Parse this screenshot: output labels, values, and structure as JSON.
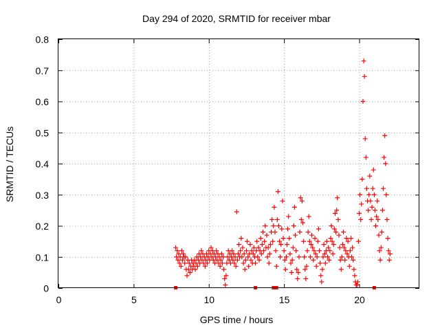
{
  "chart_data": {
    "type": "scatter",
    "title": "Day 294 of 2020, SRMTID for receiver mbar",
    "xlabel": "GPS time / hours",
    "ylabel": "SRMTID / TECUs",
    "xlim": [
      0,
      24
    ],
    "ylim": [
      0,
      0.8
    ],
    "x_ticks": [
      "0",
      "5",
      "10",
      "15",
      "20"
    ],
    "y_ticks": [
      "0",
      "0.1",
      "0.2",
      "0.3",
      "0.4",
      "0.5",
      "0.6",
      "0.7",
      "0.8"
    ],
    "grid": true,
    "legend": "none",
    "marker": "+",
    "color": "#ff0000",
    "series": [
      {
        "points": [
          [
            7.8,
            0.13
          ],
          [
            7.85,
            0.1
          ],
          [
            7.9,
            0.12
          ],
          [
            7.95,
            0.09
          ],
          [
            8.0,
            0.11
          ],
          [
            8.05,
            0.08
          ],
          [
            8.1,
            0.1
          ],
          [
            8.15,
            0.07
          ],
          [
            8.2,
            0.12
          ],
          [
            8.25,
            0.09
          ],
          [
            8.3,
            0.11
          ],
          [
            8.35,
            0.1
          ],
          [
            8.4,
            0.08
          ],
          [
            8.45,
            0.1
          ],
          [
            8.5,
            0.06
          ],
          [
            8.55,
            0.04
          ],
          [
            8.6,
            0.09
          ],
          [
            8.65,
            0.06
          ],
          [
            8.7,
            0.08
          ],
          [
            8.75,
            0.05
          ],
          [
            8.8,
            0.07
          ],
          [
            8.85,
            0.09
          ],
          [
            8.9,
            0.06
          ],
          [
            8.95,
            0.08
          ],
          [
            9.0,
            0.07
          ],
          [
            9.05,
            0.09
          ],
          [
            9.1,
            0.06
          ],
          [
            9.15,
            0.08
          ],
          [
            9.2,
            0.1
          ],
          [
            9.25,
            0.07
          ],
          [
            9.3,
            0.09
          ],
          [
            9.35,
            0.11
          ],
          [
            9.4,
            0.08
          ],
          [
            9.45,
            0.1
          ],
          [
            9.5,
            0.12
          ],
          [
            9.55,
            0.09
          ],
          [
            9.6,
            0.11
          ],
          [
            9.65,
            0.08
          ],
          [
            9.7,
            0.1
          ],
          [
            9.75,
            0.07
          ],
          [
            9.8,
            0.09
          ],
          [
            9.85,
            0.11
          ],
          [
            9.9,
            0.08
          ],
          [
            9.95,
            0.1
          ],
          [
            10.0,
            0.12
          ],
          [
            10.05,
            0.09
          ],
          [
            10.1,
            0.11
          ],
          [
            10.15,
            0.13
          ],
          [
            10.2,
            0.1
          ],
          [
            10.25,
            0.12
          ],
          [
            10.3,
            0.09
          ],
          [
            10.35,
            0.11
          ],
          [
            10.4,
            0.08
          ],
          [
            10.45,
            0.1
          ],
          [
            10.5,
            0.12
          ],
          [
            10.55,
            0.09
          ],
          [
            10.6,
            0.11
          ],
          [
            10.65,
            0.08
          ],
          [
            10.7,
            0.1
          ],
          [
            10.75,
            0.07
          ],
          [
            10.8,
            0.09
          ],
          [
            10.85,
            0.11
          ],
          [
            10.9,
            0.08
          ],
          [
            10.95,
            0.1
          ],
          [
            11.0,
            0.06
          ],
          [
            11.05,
            0.03
          ],
          [
            11.1,
            0.01
          ],
          [
            11.15,
            0.04
          ],
          [
            11.2,
            0.08
          ],
          [
            11.25,
            0.1
          ],
          [
            11.3,
            0.12
          ],
          [
            11.35,
            0.09
          ],
          [
            11.4,
            0.11
          ],
          [
            11.45,
            0.08
          ],
          [
            11.5,
            0.1
          ],
          [
            11.55,
            0.12
          ],
          [
            11.6,
            0.09
          ],
          [
            11.65,
            0.11
          ],
          [
            11.7,
            0.08
          ],
          [
            11.75,
            0.1
          ],
          [
            11.8,
            0.07
          ],
          [
            11.85,
            0.245
          ],
          [
            11.9,
            0.09
          ],
          [
            11.95,
            0.11
          ],
          [
            12.0,
            0.14
          ],
          [
            12.05,
            0.1
          ],
          [
            12.1,
            0.12
          ],
          [
            12.15,
            0.16
          ],
          [
            12.2,
            0.1
          ],
          [
            12.25,
            0.13
          ],
          [
            12.3,
            0.08
          ],
          [
            12.35,
            0.11
          ],
          [
            12.4,
            0.06
          ],
          [
            12.45,
            0.09
          ],
          [
            12.5,
            0.12
          ],
          [
            12.55,
            0.15
          ],
          [
            12.6,
            0.1
          ],
          [
            12.65,
            0.07
          ],
          [
            12.7,
            0.11
          ],
          [
            12.75,
            0.14
          ],
          [
            12.8,
            0.09
          ],
          [
            12.85,
            0.12
          ],
          [
            12.9,
            0.08
          ],
          [
            12.95,
            0.11
          ],
          [
            13.0,
            0.13
          ],
          [
            13.05,
            0.1
          ],
          [
            13.1,
            0.08
          ],
          [
            13.15,
            0.12
          ],
          [
            13.2,
            0.15
          ],
          [
            13.25,
            0.1
          ],
          [
            13.3,
            0.13
          ],
          [
            13.35,
            0.09
          ],
          [
            13.4,
            0.12
          ],
          [
            13.45,
            0.16
          ],
          [
            13.5,
            0.11
          ],
          [
            13.55,
            0.14
          ],
          [
            13.6,
            0.18
          ],
          [
            13.65,
            0.12
          ],
          [
            13.7,
            0.15
          ],
          [
            13.75,
            0.2
          ],
          [
            13.8,
            0.13
          ],
          [
            13.85,
            0.17
          ],
          [
            13.9,
            0.1
          ],
          [
            13.95,
            0.13
          ],
          [
            14.0,
            0.08
          ],
          [
            14.05,
            0.11
          ],
          [
            14.1,
            0.14
          ],
          [
            14.15,
            0.18
          ],
          [
            14.2,
            0.22
          ],
          [
            14.25,
            0.15
          ],
          [
            14.3,
            0.2
          ],
          [
            14.35,
            0.26
          ],
          [
            14.4,
            0.18
          ],
          [
            14.45,
            0.12
          ],
          [
            14.5,
            0.07
          ],
          [
            14.55,
            0.22
          ],
          [
            14.6,
            0.31
          ],
          [
            14.65,
            0.2
          ],
          [
            14.7,
            0.15
          ],
          [
            14.75,
            0.1
          ],
          [
            14.8,
            0.14
          ],
          [
            14.85,
            0.19
          ],
          [
            14.9,
            0.28
          ],
          [
            14.95,
            0.16
          ],
          [
            15.0,
            0.12
          ],
          [
            15.05,
            0.09
          ],
          [
            15.1,
            0.06
          ],
          [
            15.15,
            0.1
          ],
          [
            15.2,
            0.14
          ],
          [
            15.25,
            0.19
          ],
          [
            15.3,
            0.23
          ],
          [
            15.35,
            0.16
          ],
          [
            15.4,
            0.11
          ],
          [
            15.45,
            0.08
          ],
          [
            15.5,
            0.05
          ],
          [
            15.55,
            0.09
          ],
          [
            15.6,
            0.13
          ],
          [
            15.65,
            0.2
          ],
          [
            15.7,
            0.26
          ],
          [
            15.75,
            0.17
          ],
          [
            15.8,
            0.12
          ],
          [
            15.85,
            0.06
          ],
          [
            15.9,
            0.03
          ],
          [
            15.95,
            0.05
          ],
          [
            16.0,
            0.1
          ],
          [
            16.05,
            0.18
          ],
          [
            16.1,
            0.29
          ],
          [
            16.15,
            0.22
          ],
          [
            16.2,
            0.28
          ],
          [
            16.25,
            0.21
          ],
          [
            16.3,
            0.15
          ],
          [
            16.35,
            0.1
          ],
          [
            16.4,
            0.06
          ],
          [
            16.45,
            0.03
          ],
          [
            16.5,
            0.07
          ],
          [
            16.55,
            0.12
          ],
          [
            16.6,
            0.18
          ],
          [
            16.65,
            0.23
          ],
          [
            16.7,
            0.15
          ],
          [
            16.75,
            0.1
          ],
          [
            16.8,
            0.14
          ],
          [
            16.85,
            0.17
          ],
          [
            16.9,
            0.13
          ],
          [
            16.95,
            0.09
          ],
          [
            17.0,
            0.12
          ],
          [
            17.05,
            0.16
          ],
          [
            17.1,
            0.11
          ],
          [
            17.15,
            0.07
          ],
          [
            17.2,
            0.1
          ],
          [
            17.25,
            0.15
          ],
          [
            17.3,
            0.19
          ],
          [
            17.35,
            0.12
          ],
          [
            17.4,
            0.08
          ],
          [
            17.45,
            0.04
          ],
          [
            17.5,
            0.02
          ],
          [
            17.55,
            0.06
          ],
          [
            17.6,
            0.1
          ],
          [
            17.65,
            0.14
          ],
          [
            17.7,
            0.11
          ],
          [
            17.75,
            0.08
          ],
          [
            17.8,
            0.12
          ],
          [
            17.85,
            0.15
          ],
          [
            17.9,
            0.1
          ],
          [
            17.95,
            0.13
          ],
          [
            18.0,
            0.09
          ],
          [
            18.05,
            0.12
          ],
          [
            18.1,
            0.16
          ],
          [
            18.15,
            0.2
          ],
          [
            18.2,
            0.15
          ],
          [
            18.25,
            0.11
          ],
          [
            18.3,
            0.14
          ],
          [
            18.35,
            0.19
          ],
          [
            18.4,
            0.24
          ],
          [
            18.45,
            0.18
          ],
          [
            18.5,
            0.25
          ],
          [
            18.55,
            0.29
          ],
          [
            18.6,
            0.22
          ],
          [
            18.65,
            0.17
          ],
          [
            18.7,
            0.13
          ],
          [
            18.75,
            0.09
          ],
          [
            18.8,
            0.06
          ],
          [
            18.85,
            0.1
          ],
          [
            18.9,
            0.14
          ],
          [
            18.95,
            0.18
          ],
          [
            19.0,
            0.13
          ],
          [
            19.05,
            0.09
          ],
          [
            19.1,
            0.12
          ],
          [
            19.15,
            0.16
          ],
          [
            19.2,
            0.11
          ],
          [
            19.25,
            0.15
          ],
          [
            19.3,
            0.1
          ],
          [
            19.35,
            0.07
          ],
          [
            19.4,
            0.12
          ],
          [
            19.45,
            0.16
          ],
          [
            19.5,
            0.1
          ],
          [
            19.55,
            0.13
          ],
          [
            19.6,
            0.09
          ],
          [
            19.65,
            0.06
          ],
          [
            19.7,
            0.04
          ],
          [
            19.75,
            0.02
          ],
          [
            19.8,
            0.01
          ],
          [
            19.85,
            0.01
          ],
          [
            19.9,
            0.02
          ],
          [
            19.95,
            0.15
          ],
          [
            20.0,
            0.24
          ],
          [
            20.05,
            0.3
          ],
          [
            20.1,
            0.22
          ],
          [
            20.15,
            0.27
          ],
          [
            20.2,
            0.35
          ],
          [
            20.25,
            0.6
          ],
          [
            20.3,
            0.73
          ],
          [
            20.35,
            0.68
          ],
          [
            20.4,
            0.48
          ],
          [
            20.45,
            0.42
          ],
          [
            20.5,
            0.32
          ],
          [
            20.55,
            0.28
          ],
          [
            20.6,
            0.25
          ],
          [
            20.65,
            0.3
          ],
          [
            20.7,
            0.36
          ],
          [
            20.75,
            0.28
          ],
          [
            20.8,
            0.22
          ],
          [
            20.85,
            0.26
          ],
          [
            20.9,
            0.32
          ],
          [
            20.95,
            0.38
          ],
          [
            21.0,
            0.3
          ],
          [
            21.05,
            0.25
          ],
          [
            21.1,
            0.2
          ],
          [
            21.15,
            0.23
          ],
          [
            21.2,
            0.28
          ],
          [
            21.25,
            0.22
          ],
          [
            21.3,
            0.17
          ],
          [
            21.35,
            0.12
          ],
          [
            21.4,
            0.09
          ],
          [
            21.45,
            0.13
          ],
          [
            21.5,
            0.18
          ],
          [
            21.55,
            0.25
          ],
          [
            21.6,
            0.32
          ],
          [
            21.65,
            0.42
          ],
          [
            21.7,
            0.49
          ],
          [
            21.75,
            0.4
          ],
          [
            21.8,
            0.3
          ],
          [
            21.85,
            0.22
          ],
          [
            21.9,
            0.16
          ],
          [
            21.95,
            0.12
          ],
          [
            22.0,
            0.09
          ],
          [
            22.05,
            0.11
          ]
        ]
      }
    ],
    "axis_markers": [
      7.8,
      13.1,
      14.3,
      14.5,
      21.0
    ]
  }
}
